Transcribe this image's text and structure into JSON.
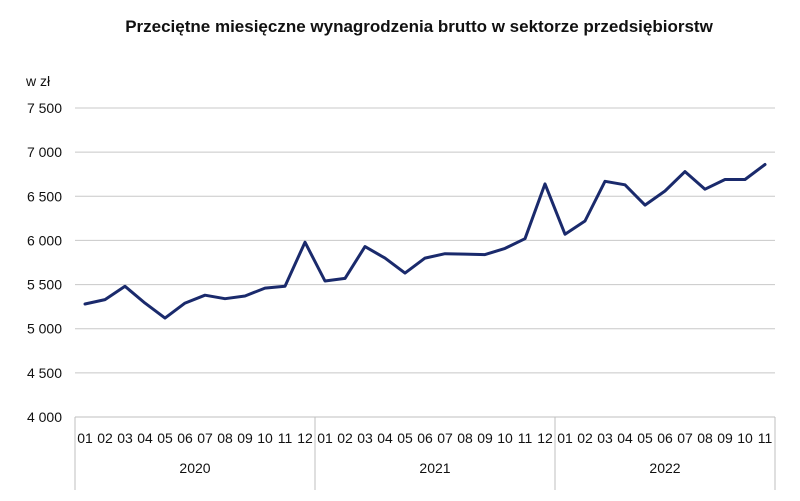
{
  "chart_data": {
    "type": "line",
    "title": "Przeciętne miesięczne wynagrodzenia brutto w sektorze przedsiębiorstw",
    "xlabel": "",
    "ylabel": "w zł",
    "ylim": [
      4000,
      7500
    ],
    "yticks": [
      4000,
      4500,
      5000,
      5500,
      6000,
      6500,
      7000,
      7500
    ],
    "ytick_labels": [
      "4 000",
      "4 500",
      "5 000",
      "5 500",
      "6 000",
      "6 500",
      "7 000",
      "7 500"
    ],
    "grid": true,
    "legend": "none",
    "x": [
      "01",
      "02",
      "03",
      "04",
      "05",
      "06",
      "07",
      "08",
      "09",
      "10",
      "11",
      "12",
      "01",
      "02",
      "03",
      "04",
      "05",
      "06",
      "07",
      "08",
      "09",
      "10",
      "11",
      "12",
      "01",
      "02",
      "03",
      "04",
      "05",
      "06",
      "07",
      "08",
      "09",
      "10",
      "11"
    ],
    "groups": [
      {
        "label": "2020",
        "count": 12
      },
      {
        "label": "2021",
        "count": 12
      },
      {
        "label": "2022",
        "count": 11
      }
    ],
    "series": [
      {
        "color": "#1a2a6c",
        "values": [
          5280,
          5330,
          5480,
          5290,
          5120,
          5290,
          5380,
          5340,
          5370,
          5460,
          5480,
          5980,
          5540,
          5570,
          5930,
          5800,
          5630,
          5800,
          5850,
          5845,
          5840,
          5910,
          6020,
          6640,
          6070,
          6220,
          6670,
          6630,
          6400,
          6560,
          6780,
          6580,
          6690,
          6690,
          6860
        ]
      }
    ]
  }
}
